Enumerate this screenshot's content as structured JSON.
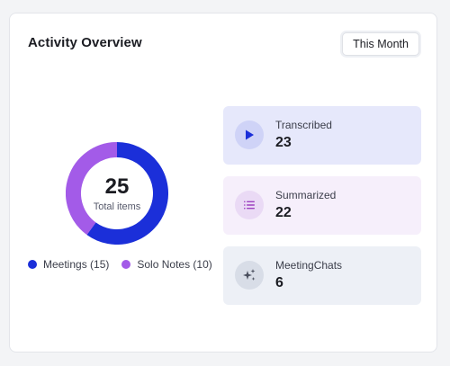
{
  "card": {
    "title": "Activity Overview",
    "period_button": "This Month"
  },
  "donut": {
    "total": "25",
    "total_label": "Total items",
    "segments": [
      {
        "name": "Meetings",
        "value": 15,
        "color": "#1b2fd9"
      },
      {
        "name": "Solo Notes",
        "value": 10,
        "color": "#a35be8"
      }
    ]
  },
  "legend": [
    {
      "label": "Meetings (15)",
      "color": "#1b2fd9"
    },
    {
      "label": "Solo Notes (10)",
      "color": "#a35be8"
    }
  ],
  "stats": [
    {
      "label": "Transcribed",
      "value": "23",
      "icon": "play-icon",
      "bg": "#e6e8fb",
      "icon_bg": "#cfd3f7",
      "icon_color": "#1b2fd9"
    },
    {
      "label": "Summarized",
      "value": "22",
      "icon": "list-icon",
      "bg": "#f6effb",
      "icon_bg": "#eadaf5",
      "icon_color": "#9c3fc0"
    },
    {
      "label": "MeetingChats",
      "value": "6",
      "icon": "sparkles-icon",
      "bg": "#edf0f6",
      "icon_bg": "#d8dde7",
      "icon_color": "#4a4f5e"
    }
  ]
}
